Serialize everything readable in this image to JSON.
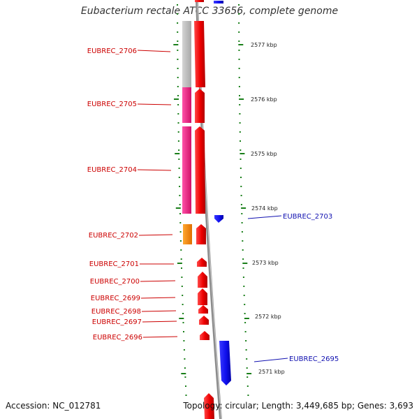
{
  "title": "Eubacterium rectale ATCC 33656, complete genome",
  "footer": {
    "accession": "Accession: NC_012781",
    "topology": "Topology: circular; Length: 3,449,685 bp; Genes: 3,693"
  },
  "colors": {
    "forward_label": "#cc0000",
    "reverse_label": "#1010b0",
    "tick": "#1a7f1a",
    "backbone": "#8c8c8c"
  },
  "kbp_labels": [
    "2577 kbp",
    "2576 kbp",
    "2575 kbp",
    "2574 kbp",
    "2573 kbp",
    "2572 kbp",
    "2571 kbp"
  ],
  "genes": [
    {
      "label": "EUBREC_2706",
      "strand": "+",
      "category_color": "#c0c0c0"
    },
    {
      "label": "EUBREC_2705",
      "strand": "+",
      "category_color": "#e0207a"
    },
    {
      "label": "EUBREC_2704",
      "strand": "+",
      "category_color": "#e0207a"
    },
    {
      "label": "EUBREC_2703",
      "strand": "-"
    },
    {
      "label": "EUBREC_2702",
      "strand": "+",
      "category_color": "#ff8c00"
    },
    {
      "label": "EUBREC_2701",
      "strand": "+"
    },
    {
      "label": "EUBREC_2700",
      "strand": "+"
    },
    {
      "label": "EUBREC_2699",
      "strand": "+"
    },
    {
      "label": "EUBREC_2698",
      "strand": "+"
    },
    {
      "label": "EUBREC_2697",
      "strand": "+"
    },
    {
      "label": "EUBREC_2696",
      "strand": "+"
    },
    {
      "label": "EUBREC_2695",
      "strand": "-"
    }
  ]
}
